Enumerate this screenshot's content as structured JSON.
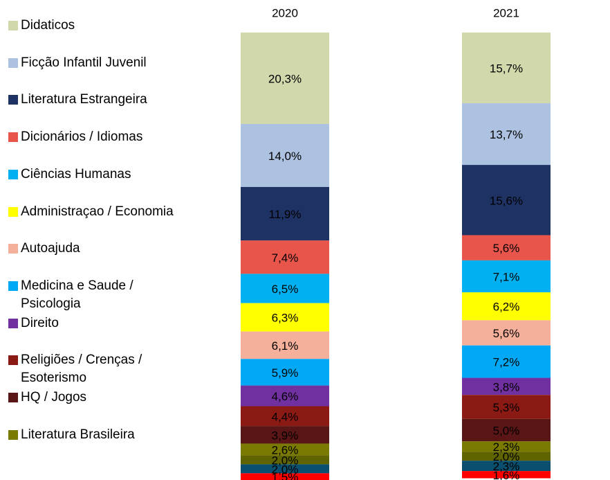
{
  "chart_data": {
    "type": "stacked_bar",
    "categories": [
      "2020",
      "2021"
    ],
    "ylim": [
      0,
      100
    ],
    "series": [
      {
        "name": "Didaticos",
        "color": "#d1d8ab",
        "values": [
          20.3,
          15.7
        ],
        "value_labels": [
          "20,3%",
          "15,7%"
        ]
      },
      {
        "name": "Ficção Infantil Juvenil",
        "color": "#adc2e0",
        "values": [
          14.0,
          13.7
        ],
        "value_labels": [
          "14,0%",
          "13,7%"
        ]
      },
      {
        "name": "Literatura Estrangeira",
        "color": "#1f3264",
        "values": [
          11.9,
          15.6
        ],
        "value_labels": [
          "11,9%",
          "15,6%"
        ]
      },
      {
        "name": "Dicionários / Idiomas",
        "color": "#e8554a",
        "values": [
          7.4,
          5.6
        ],
        "value_labels": [
          "7,4%",
          "5,6%"
        ]
      },
      {
        "name": "Ciências Humanas",
        "color": "#00b0f0",
        "values": [
          6.5,
          7.1
        ],
        "value_labels": [
          "6,5%",
          "7,1%"
        ]
      },
      {
        "name": "Administraçao / Economia",
        "color": "#ffff00",
        "values": [
          6.3,
          6.2
        ],
        "value_labels": [
          "6,3%",
          "6,2%"
        ]
      },
      {
        "name": "Autoajuda",
        "color": "#f4b09a",
        "values": [
          6.1,
          5.6
        ],
        "value_labels": [
          "6,1%",
          "5,6%"
        ]
      },
      {
        "name": "Medicina e Saude / Psicologia",
        "color": "#00a8f5",
        "values": [
          5.9,
          7.2
        ],
        "value_labels": [
          "5,9%",
          "7,2%"
        ]
      },
      {
        "name": "Direito",
        "color": "#7030a0",
        "values": [
          4.6,
          3.8
        ],
        "value_labels": [
          "4,6%",
          "3,8%"
        ]
      },
      {
        "name": "Religiões / Crenças / Esoterismo",
        "color": "#8b1a14",
        "values": [
          4.4,
          5.3
        ],
        "value_labels": [
          "4,4%",
          "5,3%"
        ]
      },
      {
        "name": "HQ / Jogos",
        "color": "#5a1616",
        "values": [
          3.9,
          5.0
        ],
        "value_labels": [
          "3,9%",
          "5,0%"
        ]
      },
      {
        "name": "Literatura Brasileira",
        "color": "#7a7a00",
        "values": [
          2.6,
          2.3
        ],
        "value_labels": [
          "2,6%",
          "2,3%"
        ]
      },
      {
        "color": "#5f6400",
        "values": [
          2.0,
          2.0
        ],
        "value_labels": [
          "2,0%",
          "2,0%"
        ]
      },
      {
        "color": "#0b4f6e",
        "values": [
          2.0,
          2.3
        ],
        "value_labels": [
          "2,0%",
          "2,3%"
        ]
      },
      {
        "color": "#ff0000",
        "values": [
          1.5,
          1.6
        ],
        "value_labels": [
          "1,5%",
          "1,6%"
        ]
      }
    ]
  }
}
